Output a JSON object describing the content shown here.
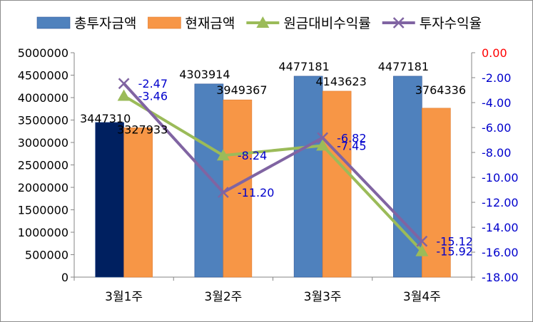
{
  "chart_data": {
    "type": "bar",
    "title": "",
    "categories": [
      "3월1주",
      "3월2주",
      "3월3주",
      "3월4주"
    ],
    "series": [
      {
        "name": "총투자금액",
        "axis": "left",
        "kind": "bar",
        "color": "#4f81bd",
        "highlight_color": "#002060",
        "values": [
          3447310,
          4303914,
          4477181,
          4477181
        ],
        "labels": [
          "3447310",
          "4303914",
          "4477181",
          "4477181"
        ]
      },
      {
        "name": "현재금액",
        "axis": "left",
        "kind": "bar",
        "color": "#f79646",
        "values": [
          3327933,
          3949367,
          4143623,
          3764336
        ],
        "labels": [
          "3327933",
          "3949367",
          "4143623",
          "3764336"
        ]
      },
      {
        "name": "원금대비수익률",
        "axis": "right",
        "kind": "line",
        "marker": "triangle",
        "color": "#9bbb59",
        "values": [
          -3.46,
          -8.24,
          -7.45,
          -15.92
        ],
        "labels": [
          "-3.46",
          "-8.24",
          "-7.45",
          "-15.92"
        ]
      },
      {
        "name": "투자수익율",
        "axis": "right",
        "kind": "line",
        "marker": "x",
        "color": "#8064a2",
        "values": [
          -2.47,
          -11.2,
          -6.82,
          -15.12
        ],
        "labels": [
          "-2.47",
          "-11.20",
          "-6.82",
          "-15.12"
        ]
      }
    ],
    "left_axis": {
      "ylim": [
        0,
        5000000
      ],
      "ticks": [
        0,
        500000,
        1000000,
        1500000,
        2000000,
        2500000,
        3000000,
        3500000,
        4000000,
        4500000,
        5000000
      ],
      "tick_labels": [
        "0",
        "500000",
        "1000000",
        "1500000",
        "2000000",
        "2500000",
        "3000000",
        "3500000",
        "4000000",
        "4500000",
        "5000000"
      ]
    },
    "right_axis": {
      "ylim": [
        -18,
        0
      ],
      "ticks": [
        0,
        -2,
        -4,
        -6,
        -8,
        -10,
        -12,
        -14,
        -16,
        -18
      ],
      "tick_labels": [
        "0.00",
        "-2.00",
        "-4.00",
        "-6.00",
        "-8.00",
        "-10.00",
        "-12.00",
        "-14.00",
        "-16.00",
        "-18.00"
      ],
      "zero_label_color": "#ff0000",
      "label_color": "#0000cc"
    },
    "legend_position": "top",
    "grid": false
  }
}
